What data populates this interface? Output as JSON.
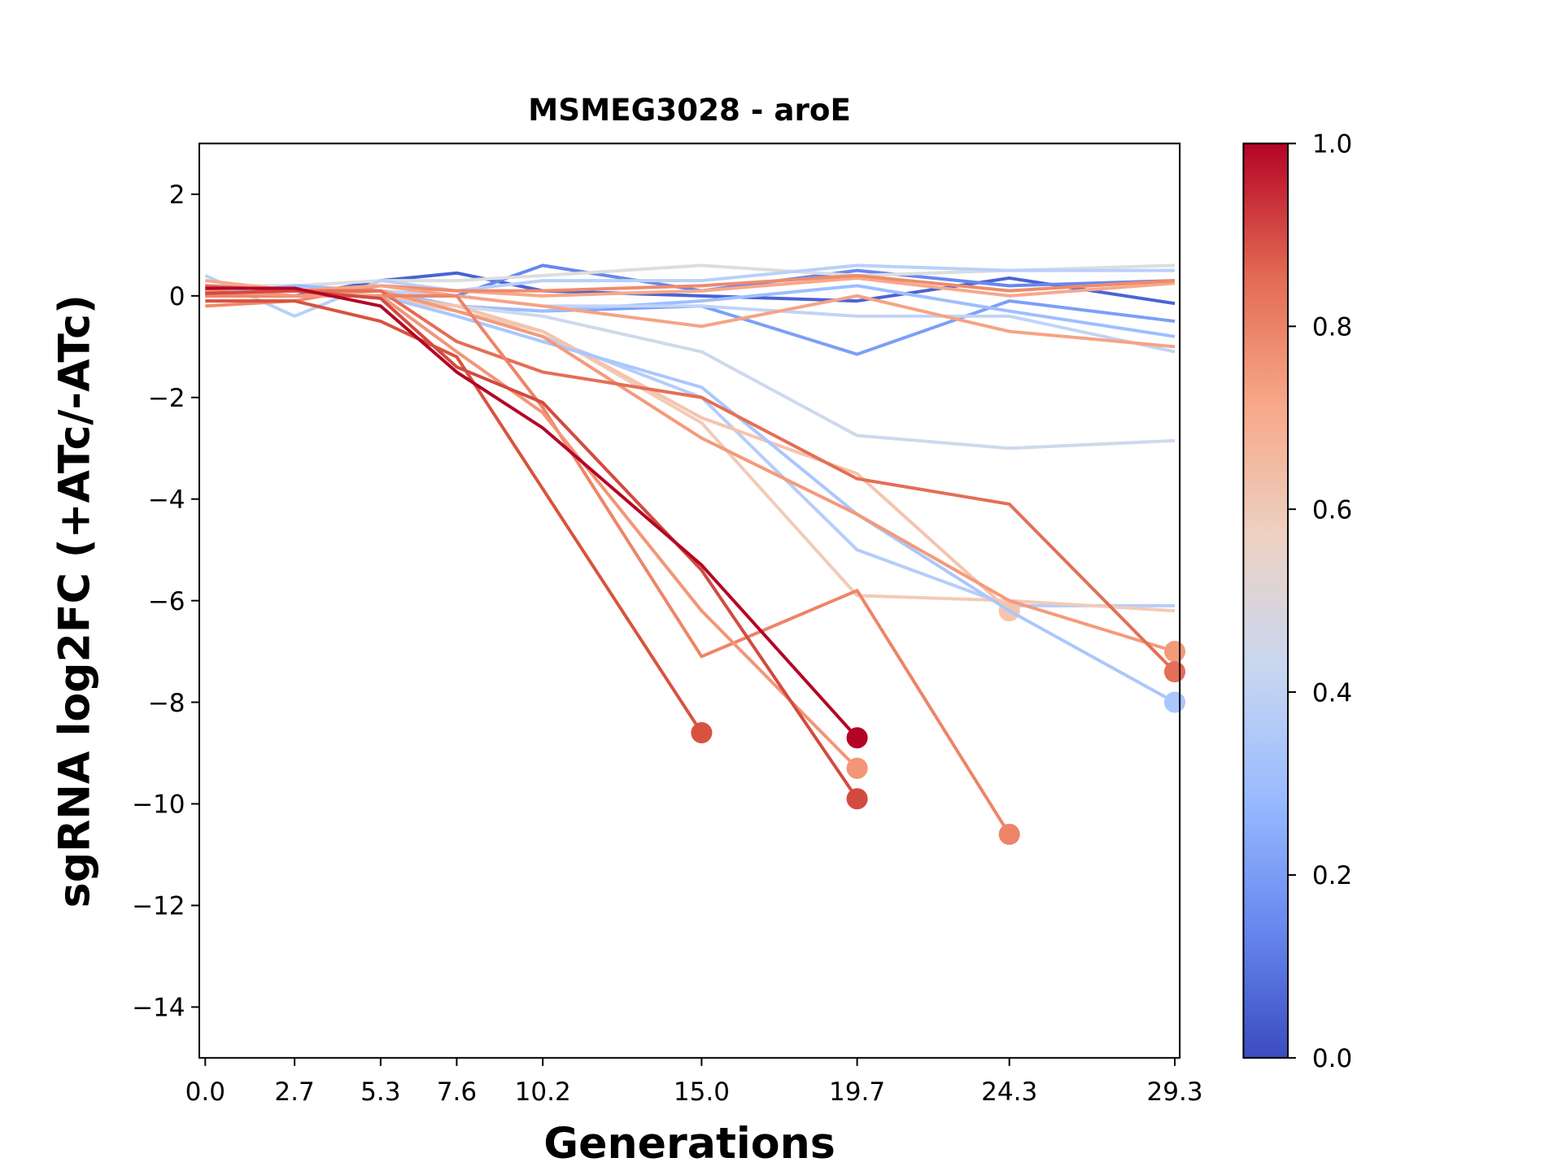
{
  "chart_data": {
    "type": "line",
    "title": "MSMEG3028 - aroE",
    "xlabel": "Generations",
    "ylabel": "sgRNA log2FC (+ATc/-ATc)",
    "x": [
      0,
      2.7,
      5.3,
      7.6,
      10.2,
      15.0,
      19.7,
      24.3,
      29.3
    ],
    "xlim": [
      -0.18,
      29.45
    ],
    "xticks": [
      {
        "value": 0,
        "label": "0.0"
      },
      2.7,
      5.3,
      7.6,
      10.2,
      {
        "value": 15,
        "label": "15.0"
      },
      19.7,
      24.3,
      29.3
    ],
    "ylim": [
      -15,
      3
    ],
    "yticks": [
      {
        "value": -14,
        "label": "−14"
      },
      {
        "value": -12,
        "label": "−12"
      },
      {
        "value": -10,
        "label": "−10"
      },
      {
        "value": -8,
        "label": "−8"
      },
      {
        "value": -6,
        "label": "−6"
      },
      {
        "value": -4,
        "label": "−4"
      },
      {
        "value": -2,
        "label": "−2"
      },
      0,
      2
    ],
    "grid": false,
    "series": [
      {
        "color": "#4a63d3",
        "values": [
          0.1,
          0.0,
          0.3,
          0.45,
          0.1,
          0.0,
          -0.1,
          0.35,
          -0.15
        ]
      },
      {
        "color": "#6788ee",
        "values": [
          0.0,
          0.0,
          0.0,
          0.0,
          0.6,
          0.1,
          0.5,
          0.2,
          0.3
        ]
      },
      {
        "color": "#7b9ff9",
        "values": [
          0.0,
          0.0,
          0.0,
          -0.2,
          -0.3,
          -0.2,
          -1.15,
          -0.1,
          -0.5
        ]
      },
      {
        "color": "#dcdddd",
        "values": [
          0.2,
          0.2,
          0.3,
          0.3,
          0.4,
          0.6,
          0.4,
          0.5,
          0.6
        ]
      },
      {
        "color": "#b9d0f9",
        "values": [
          0.4,
          -0.4,
          0.3,
          0.1,
          0.3,
          0.3,
          0.6,
          0.5,
          0.5
        ]
      },
      {
        "color": "#9ebeff",
        "values": [
          0.0,
          0.2,
          0.1,
          -0.2,
          -0.3,
          -0.1,
          0.2,
          -0.3,
          -0.8
        ]
      },
      {
        "color": "#c0d4f5",
        "values": [
          0.1,
          0.1,
          0.1,
          0.0,
          -0.2,
          -0.2,
          -0.4,
          -0.4,
          -1.1
        ]
      },
      {
        "color": "#f7a889",
        "values": [
          0.3,
          0.1,
          0.2,
          0.1,
          0.0,
          0.1,
          0.35,
          0.0,
          0.25
        ]
      },
      {
        "color": "#f08a6c",
        "values": [
          -0.2,
          -0.1,
          0.2,
          0.1,
          0.1,
          0.2,
          0.4,
          0.1,
          0.3
        ]
      },
      {
        "color": "#f6a385",
        "values": [
          0.0,
          0.1,
          0.2,
          0.0,
          -0.2,
          -0.6,
          0.0,
          -0.7,
          -1.0
        ]
      },
      {
        "color": "#cdd9ec",
        "values": [
          0.0,
          0.0,
          0.0,
          -0.2,
          -0.4,
          -1.1,
          -2.75,
          -3.0,
          -2.85
        ]
      },
      {
        "color": "#b5cdfa",
        "values": [
          0.2,
          0.1,
          0.1,
          -0.3,
          -0.8,
          -2.0,
          -5.0,
          -6.1,
          -6.1
        ]
      },
      {
        "color": "#f2cbb7",
        "values": [
          0.1,
          0.0,
          0.0,
          -0.3,
          -0.7,
          -2.5,
          -5.9,
          -6.0,
          -6.2
        ]
      },
      {
        "color": "#f5c4ac",
        "values": [
          0.1,
          0.0,
          0.0,
          -0.2,
          -0.7,
          -2.4,
          -3.5,
          -6.2,
          null
        ],
        "end_marker": true
      },
      {
        "color": "#aac7fd",
        "values": [
          0.1,
          0.0,
          0.0,
          -0.4,
          -0.9,
          -1.8,
          -4.3,
          -6.2,
          -8.0
        ],
        "end_marker": true
      },
      {
        "color": "#f49a7b",
        "values": [
          0.0,
          0.0,
          0.1,
          -0.3,
          -0.8,
          -2.8,
          -4.3,
          -6.0,
          -7.0
        ],
        "end_marker": true
      },
      {
        "color": "#e46e56",
        "values": [
          0.2,
          0.1,
          0.1,
          -0.9,
          -1.5,
          -2.0,
          -3.6,
          -4.1,
          -7.4
        ],
        "end_marker": true
      },
      {
        "color": "#ee8468",
        "values": [
          0.0,
          0.0,
          0.0,
          0.0,
          -2.2,
          -7.1,
          -5.8,
          -10.6,
          null
        ],
        "end_marker": true
      },
      {
        "color": "#f39577",
        "values": [
          0.1,
          0.0,
          0.0,
          -1.1,
          -2.3,
          -6.2,
          -9.3,
          null,
          null
        ],
        "end_marker": true
      },
      {
        "color": "#d8533f",
        "values": [
          -0.1,
          -0.1,
          -0.5,
          -1.2,
          -3.8,
          -8.6,
          null,
          null,
          null
        ],
        "end_marker": true
      },
      {
        "color": "#d24b40",
        "values": [
          0.05,
          0.1,
          -0.05,
          -1.4,
          -2.1,
          -5.4,
          -9.9,
          null,
          null
        ],
        "end_marker": true
      },
      {
        "color": "#b40426",
        "values": [
          0.15,
          0.15,
          -0.2,
          -1.5,
          -2.6,
          -5.3,
          -8.7,
          null,
          null
        ],
        "end_marker": true
      }
    ],
    "colorbar": {
      "lim": [
        0,
        1
      ],
      "ticks": [
        {
          "value": 0,
          "label": "0.0"
        },
        0.2,
        0.4,
        0.6,
        0.8,
        {
          "value": 1,
          "label": "1.0"
        }
      ],
      "colors": [
        "#3b4cc0",
        "#6788ee",
        "#9abbff",
        "#c9d7f0",
        "#edd1c2",
        "#f7a889",
        "#e26952",
        "#b40426"
      ]
    }
  }
}
